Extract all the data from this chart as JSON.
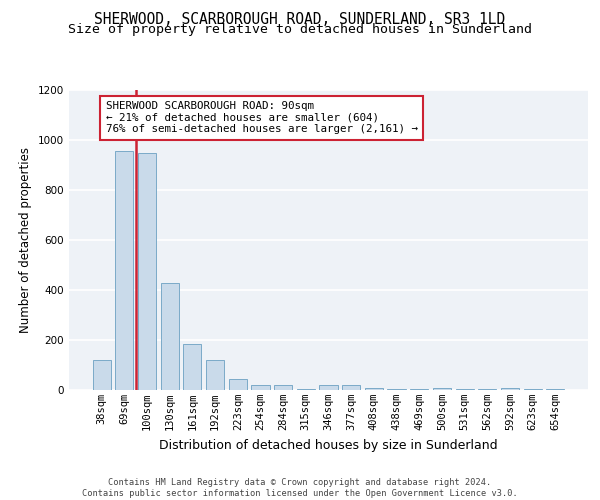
{
  "title": "SHERWOOD, SCARBOROUGH ROAD, SUNDERLAND, SR3 1LD",
  "subtitle": "Size of property relative to detached houses in Sunderland",
  "xlabel": "Distribution of detached houses by size in Sunderland",
  "ylabel": "Number of detached properties",
  "bar_color": "#c9daea",
  "bar_edge_color": "#7aaac8",
  "categories": [
    "38sqm",
    "69sqm",
    "100sqm",
    "130sqm",
    "161sqm",
    "192sqm",
    "223sqm",
    "254sqm",
    "284sqm",
    "315sqm",
    "346sqm",
    "377sqm",
    "408sqm",
    "438sqm",
    "469sqm",
    "500sqm",
    "531sqm",
    "562sqm",
    "592sqm",
    "623sqm",
    "654sqm"
  ],
  "values": [
    120,
    955,
    948,
    430,
    185,
    120,
    44,
    22,
    22,
    5,
    22,
    22,
    10,
    5,
    5,
    10,
    5,
    5,
    10,
    5,
    5
  ],
  "ylim": [
    0,
    1200
  ],
  "yticks": [
    0,
    200,
    400,
    600,
    800,
    1000,
    1200
  ],
  "annotation_text": "SHERWOOD SCARBOROUGH ROAD: 90sqm\n← 21% of detached houses are smaller (604)\n76% of semi-detached houses are larger (2,161) →",
  "footer_line1": "Contains HM Land Registry data © Crown copyright and database right 2024.",
  "footer_line2": "Contains public sector information licensed under the Open Government Licence v3.0.",
  "red_line_x": 1.5,
  "background_color": "#eef2f7",
  "grid_color": "#ffffff",
  "title_fontsize": 10.5,
  "subtitle_fontsize": 9.5,
  "ylabel_fontsize": 8.5,
  "xlabel_fontsize": 9,
  "tick_fontsize": 7.5,
  "footer_fontsize": 6.2,
  "annotation_fontsize": 7.8
}
